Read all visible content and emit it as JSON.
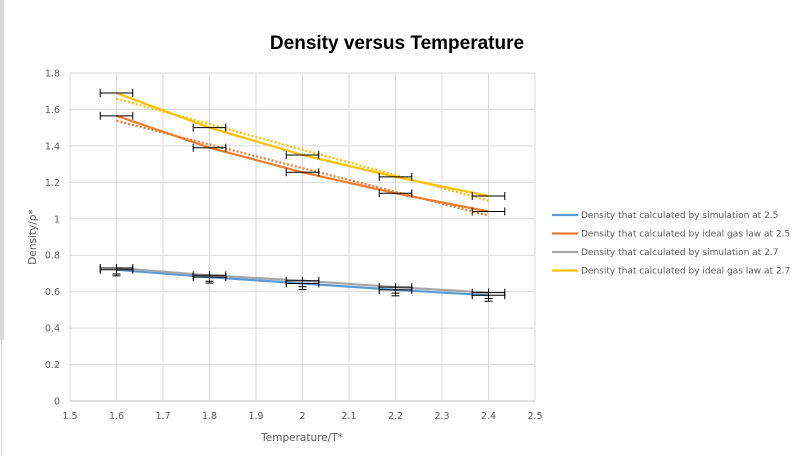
{
  "chart_data": {
    "type": "line",
    "title": "Density versus Temperature",
    "xlabel": "Temperature/T*",
    "ylabel": "Density/ρ*",
    "xlim": [
      1.5,
      2.5
    ],
    "ylim": [
      0,
      1.8
    ],
    "xticks": [
      "1.5",
      "1.6",
      "1.7",
      "1.8",
      "1.9",
      "2",
      "2.1",
      "2.2",
      "2.3",
      "2.4",
      "2.5"
    ],
    "yticks": [
      "0",
      "0.2",
      "0.4",
      "0.6",
      "0.8",
      "1",
      "1.2",
      "1.4",
      "1.6",
      "1.8"
    ],
    "grid": true,
    "legend_position": "right",
    "x": [
      1.6,
      1.8,
      2.0,
      2.2,
      2.4
    ],
    "x_error": 0.035,
    "series": [
      {
        "name": "Density that calculated by simulation at 2.5",
        "color": "#5b9bd5",
        "values": [
          0.72,
          0.68,
          0.645,
          0.61,
          0.58
        ],
        "trendline": false
      },
      {
        "name": "Density that calculated by ideal gas law at 2.5",
        "color": "#ed7d31",
        "values": [
          1.565,
          1.39,
          1.255,
          1.14,
          1.04
        ],
        "trendline": true
      },
      {
        "name": "Density that calculated by simulation at 2.7",
        "color": "#a5a5a5",
        "values": [
          0.73,
          0.69,
          0.66,
          0.625,
          0.595
        ],
        "trendline": false
      },
      {
        "name": "Density that calculated by ideal gas law at 2.7",
        "color": "#ffc000",
        "values": [
          1.69,
          1.5,
          1.35,
          1.23,
          1.125
        ],
        "trendline": true
      }
    ]
  }
}
